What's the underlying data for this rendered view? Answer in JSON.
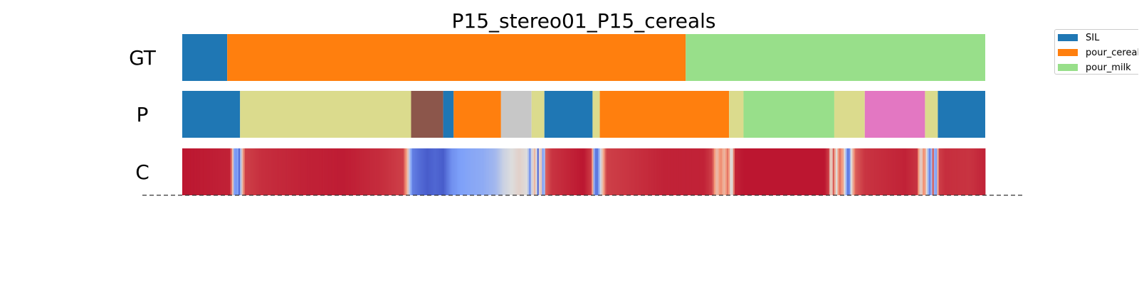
{
  "chart_data": {
    "type": "heatmap",
    "title": "P15_stereo01_P15_cereals",
    "frames": 1000,
    "rows": [
      {
        "label": "GT",
        "segments": [
          {
            "start": 0,
            "end": 56,
            "class": "SIL",
            "color": "#1f77b4"
          },
          {
            "start": 56,
            "end": 627,
            "class": "pour_cereals",
            "color": "#ff7f0e"
          },
          {
            "start": 627,
            "end": 1000,
            "class": "pour_milk",
            "color": "#98df8a"
          }
        ]
      },
      {
        "label": "P",
        "segments": [
          {
            "start": 0,
            "end": 72,
            "color": "#1f77b4"
          },
          {
            "start": 72,
            "end": 285,
            "color": "#dbdb8d"
          },
          {
            "start": 285,
            "end": 325,
            "color": "#8c564b"
          },
          {
            "start": 325,
            "end": 338,
            "color": "#1f77b4"
          },
          {
            "start": 338,
            "end": 397,
            "color": "#ff7f0e"
          },
          {
            "start": 397,
            "end": 435,
            "color": "#c7c7c7"
          },
          {
            "start": 435,
            "end": 451,
            "color": "#dbdb8d"
          },
          {
            "start": 451,
            "end": 511,
            "color": "#1f77b4"
          },
          {
            "start": 511,
            "end": 520,
            "color": "#dbdb8d"
          },
          {
            "start": 520,
            "end": 681,
            "color": "#ff7f0e"
          },
          {
            "start": 681,
            "end": 699,
            "color": "#dbdb8d"
          },
          {
            "start": 699,
            "end": 812,
            "color": "#98df8a"
          },
          {
            "start": 812,
            "end": 850,
            "color": "#dbdb8d"
          },
          {
            "start": 850,
            "end": 925,
            "color": "#e377c2"
          },
          {
            "start": 925,
            "end": 941,
            "color": "#dbdb8d"
          },
          {
            "start": 941,
            "end": 1000,
            "color": "#1f77b4"
          }
        ]
      },
      {
        "label": "C",
        "colormap": "coolwarm",
        "keypoints": [
          [
            0,
            0.97
          ],
          [
            60,
            0.95
          ],
          [
            63,
            0.6
          ],
          [
            66,
            0.1
          ],
          [
            68,
            0.35
          ],
          [
            71,
            0.1
          ],
          [
            74,
            0.55
          ],
          [
            78,
            0.9
          ],
          [
            100,
            0.93
          ],
          [
            150,
            0.95
          ],
          [
            200,
            0.96
          ],
          [
            250,
            0.93
          ],
          [
            275,
            0.9
          ],
          [
            280,
            0.7
          ],
          [
            283,
            0.4
          ],
          [
            287,
            0.15
          ],
          [
            295,
            0.1
          ],
          [
            305,
            0.05
          ],
          [
            315,
            0.08
          ],
          [
            325,
            0.05
          ],
          [
            335,
            0.2
          ],
          [
            345,
            0.25
          ],
          [
            360,
            0.28
          ],
          [
            375,
            0.3
          ],
          [
            390,
            0.35
          ],
          [
            400,
            0.45
          ],
          [
            410,
            0.5
          ],
          [
            420,
            0.55
          ],
          [
            430,
            0.5
          ],
          [
            433,
            0.2
          ],
          [
            435,
            0.45
          ],
          [
            440,
            0.7
          ],
          [
            443,
            0.1
          ],
          [
            446,
            0.75
          ],
          [
            450,
            0.1
          ],
          [
            453,
            0.85
          ],
          [
            460,
            0.92
          ],
          [
            500,
            0.97
          ],
          [
            510,
            0.9
          ],
          [
            513,
            0.3
          ],
          [
            516,
            0.05
          ],
          [
            519,
            0.3
          ],
          [
            522,
            0.55
          ],
          [
            528,
            0.9
          ],
          [
            600,
            0.95
          ],
          [
            650,
            0.95
          ],
          [
            660,
            0.9
          ],
          [
            666,
            0.6
          ],
          [
            670,
            0.8
          ],
          [
            675,
            0.65
          ],
          [
            680,
            0.85
          ],
          [
            684,
            0.4
          ],
          [
            688,
            0.95
          ],
          [
            700,
            0.97
          ],
          [
            800,
            0.97
          ],
          [
            805,
            0.9
          ],
          [
            808,
            0.45
          ],
          [
            811,
            0.85
          ],
          [
            815,
            0.5
          ],
          [
            818,
            0.85
          ],
          [
            823,
            0.7
          ],
          [
            827,
            0.3
          ],
          [
            830,
            0.05
          ],
          [
            833,
            0.5
          ],
          [
            838,
            0.85
          ],
          [
            850,
            0.92
          ],
          [
            900,
            0.95
          ],
          [
            915,
            0.92
          ],
          [
            920,
            0.5
          ],
          [
            924,
            0.85
          ],
          [
            928,
            0.4
          ],
          [
            932,
            0.1
          ],
          [
            935,
            0.85
          ],
          [
            938,
            0.05
          ],
          [
            942,
            0.9
          ],
          [
            950,
            0.93
          ],
          [
            980,
            0.92
          ],
          [
            1000,
            0.95
          ]
        ]
      }
    ],
    "legend": [
      {
        "label": "SIL",
        "color": "#1f77b4"
      },
      {
        "label": "pour_cereals",
        "color": "#ff7f0e"
      },
      {
        "label": "pour_milk",
        "color": "#98df8a"
      }
    ]
  }
}
